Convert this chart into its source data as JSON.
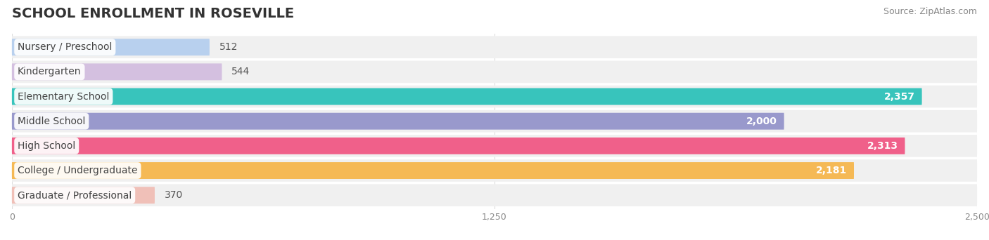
{
  "title": "SCHOOL ENROLLMENT IN ROSEVILLE",
  "source": "Source: ZipAtlas.com",
  "categories": [
    "Nursery / Preschool",
    "Kindergarten",
    "Elementary School",
    "Middle School",
    "High School",
    "College / Undergraduate",
    "Graduate / Professional"
  ],
  "values": [
    512,
    544,
    2357,
    2000,
    2313,
    2181,
    370
  ],
  "bar_colors": [
    "#b8d0ee",
    "#d4c0e0",
    "#38c4bc",
    "#9999cc",
    "#f0608a",
    "#f5b955",
    "#f0c0b8"
  ],
  "label_colors": [
    "#555555",
    "#555555",
    "#ffffff",
    "#ffffff",
    "#ffffff",
    "#ffffff",
    "#555555"
  ],
  "xlim": [
    0,
    2500
  ],
  "xticks": [
    0,
    1250,
    2500
  ],
  "xtick_labels": [
    "0",
    "1,250",
    "2,500"
  ],
  "background_color": "#ffffff",
  "row_bg_color": "#f0f0f0",
  "title_fontsize": 14,
  "source_fontsize": 9,
  "bar_label_fontsize": 10,
  "cat_label_fontsize": 10
}
